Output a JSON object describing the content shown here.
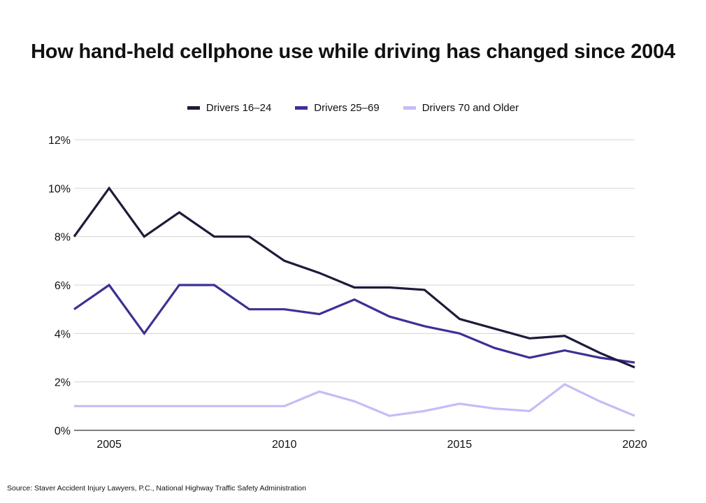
{
  "chart_data": {
    "type": "line",
    "title": "How hand-held cellphone use while driving has changed since 2004",
    "x": [
      2004,
      2005,
      2006,
      2007,
      2008,
      2009,
      2010,
      2011,
      2012,
      2013,
      2014,
      2015,
      2016,
      2017,
      2018,
      2019,
      2020
    ],
    "series": [
      {
        "name": "Drivers 16–24",
        "color": "#1c1b3a",
        "values": [
          8.0,
          10.0,
          8.0,
          9.0,
          8.0,
          8.0,
          7.0,
          6.5,
          5.9,
          5.9,
          5.8,
          4.6,
          4.2,
          3.8,
          3.9,
          3.2,
          2.6
        ]
      },
      {
        "name": "Drivers 25–69",
        "color": "#3b3196",
        "values": [
          5.0,
          6.0,
          4.0,
          6.0,
          6.0,
          5.0,
          5.0,
          4.8,
          5.4,
          4.7,
          4.3,
          4.0,
          3.4,
          3.0,
          3.3,
          3.0,
          2.8
        ]
      },
      {
        "name": "Drivers 70 and Older",
        "color": "#c3bdf7",
        "values": [
          1.0,
          1.0,
          1.0,
          1.0,
          1.0,
          1.0,
          1.0,
          1.6,
          1.2,
          0.6,
          0.8,
          1.1,
          0.9,
          0.8,
          1.9,
          1.2,
          0.6
        ]
      }
    ],
    "ylim": [
      0,
      12
    ],
    "yticks": [
      0,
      2,
      4,
      6,
      8,
      10,
      12
    ],
    "ytick_labels": [
      "0%",
      "2%",
      "4%",
      "6%",
      "8%",
      "10%",
      "12%"
    ],
    "xticks": [
      2005,
      2010,
      2015,
      2020
    ],
    "xtick_labels": [
      "2005",
      "2010",
      "2015",
      "2020"
    ],
    "xlabel": "",
    "ylabel": "",
    "grid": true,
    "legend_position": "top-center"
  },
  "source": "Source: Staver Accident Injury Lawyers, P.C., National Highway Traffic Safety Administration"
}
